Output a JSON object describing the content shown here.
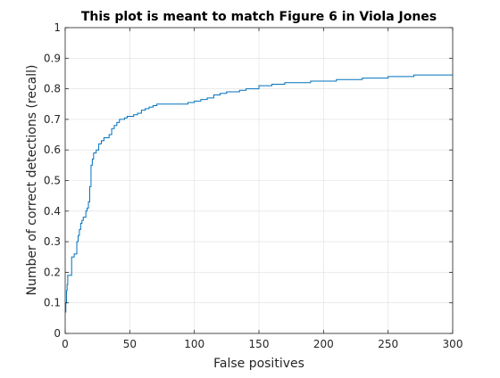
{
  "chart_data": {
    "type": "line",
    "title": "This plot is meant to match Figure 6 in Viola Jones",
    "xlabel": "False positives",
    "ylabel": "Number of correct detections (recall)",
    "xlim": [
      0,
      300
    ],
    "ylim": [
      0,
      1
    ],
    "xticks": [
      0,
      50,
      100,
      150,
      200,
      250,
      300
    ],
    "yticks": [
      0,
      0.1,
      0.2,
      0.3,
      0.4,
      0.5,
      0.6,
      0.7,
      0.8,
      0.9,
      1
    ],
    "grid": true,
    "legend": "none",
    "series": [
      {
        "step": true,
        "color": "#0072bd",
        "x": [
          0,
          0.5,
          1,
          1.5,
          2,
          3,
          5,
          6,
          7,
          8,
          9,
          10,
          11,
          12,
          13,
          14,
          15,
          16,
          17,
          18,
          19,
          20,
          21,
          22,
          23,
          24,
          26,
          28,
          30,
          32,
          34,
          36,
          38,
          40,
          42,
          44,
          46,
          48,
          50,
          53,
          56,
          59,
          62,
          65,
          68,
          71,
          75,
          80,
          85,
          90,
          95,
          100,
          105,
          110,
          115,
          120,
          125,
          130,
          135,
          140,
          150,
          160,
          170,
          180,
          190,
          200,
          210,
          220,
          230,
          240,
          250,
          260,
          270,
          280,
          290,
          300
        ],
        "y": [
          0.07,
          0.1,
          0.14,
          0.16,
          0.19,
          0.19,
          0.25,
          0.25,
          0.26,
          0.26,
          0.3,
          0.32,
          0.34,
          0.36,
          0.37,
          0.38,
          0.38,
          0.4,
          0.41,
          0.43,
          0.48,
          0.55,
          0.57,
          0.59,
          0.59,
          0.6,
          0.62,
          0.63,
          0.64,
          0.64,
          0.65,
          0.67,
          0.68,
          0.69,
          0.7,
          0.7,
          0.705,
          0.71,
          0.71,
          0.715,
          0.72,
          0.73,
          0.735,
          0.74,
          0.745,
          0.75,
          0.75,
          0.75,
          0.75,
          0.75,
          0.755,
          0.76,
          0.765,
          0.77,
          0.78,
          0.785,
          0.79,
          0.79,
          0.795,
          0.8,
          0.81,
          0.815,
          0.82,
          0.82,
          0.825,
          0.825,
          0.83,
          0.83,
          0.835,
          0.835,
          0.84,
          0.84,
          0.845,
          0.845,
          0.845,
          0.845
        ]
      }
    ]
  }
}
